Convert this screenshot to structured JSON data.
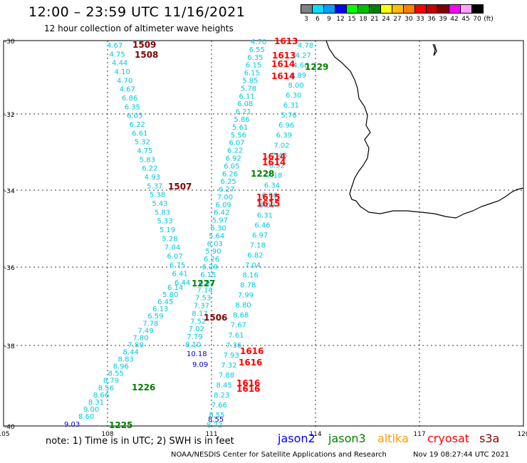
{
  "header": {
    "title": "12:00 – 23:59 UTC 11/16/2021",
    "subtitle": "12 hour collection of altimeter wave heights"
  },
  "legend": {
    "colors": [
      "#808080",
      "#00e0ff",
      "#00a0ff",
      "#0000ff",
      "#00ff00",
      "#00c000",
      "#008000",
      "#ffff00",
      "#ffc000",
      "#ff8000",
      "#ff0000",
      "#c00000",
      "#800000",
      "#ff00ff",
      "#ffa0ff",
      "#000000"
    ],
    "labels": [
      "3",
      "6",
      "9",
      "12",
      "15",
      "18",
      "21",
      "24",
      "27",
      "30",
      "33",
      "36",
      "39",
      "42",
      "45",
      "70",
      "(ft)"
    ]
  },
  "axes": {
    "lat_labels": [
      "-30",
      "-32",
      "-34",
      "-36",
      "-38",
      "-40"
    ],
    "lon_labels": [
      "105",
      "108",
      "111",
      "114",
      "117",
      "120"
    ]
  },
  "tracks": {
    "cyan_a": {
      "color": "#00c8e0",
      "values": [
        "4.67",
        "4.75",
        "4.44",
        "4.10",
        "4.70",
        "4.67",
        "6.86",
        "6.35",
        "6.05",
        "6.22",
        "6.61",
        "5.32",
        "4.75",
        "5.83",
        "6.22",
        "4.93",
        "5.37",
        "5.38",
        "5.43",
        "5.83",
        "5.33",
        "5.19",
        "5.28",
        "7.04",
        "6.07",
        "6.75",
        "6.41",
        "6.44"
      ]
    },
    "cyan_b": {
      "color": "#00c8e0",
      "values": [
        "6.14",
        "5.80",
        "6.45",
        "6.13",
        "6.59",
        "7.78",
        "7.49",
        "7.80",
        "7.89",
        "8.44",
        "8.83",
        "8.96",
        "8.55",
        "8.79",
        "8.56",
        "8.66",
        "8.31",
        "9.00",
        "8.60"
      ]
    },
    "cyan_c": {
      "color": "#00c8e0",
      "values": [
        "4.70",
        "6.55",
        "6.35",
        "6.15",
        "6.15",
        "5.85",
        "5.78",
        "6.11",
        "6.08",
        "6.21",
        "5.86",
        "5.61",
        "5.56",
        "6.07",
        "6.22",
        "6.92",
        "6.05",
        "6.26",
        "6.25",
        "6.27",
        "7.00",
        "6.09",
        "6.42",
        "5.97",
        "6.30",
        "5.64",
        "6.03",
        "5.90",
        "6.26",
        "6.29",
        "6.15",
        "6.92",
        "7.14",
        "7.53",
        "7.37",
        "8.17",
        "7.52",
        "7.02",
        "7.79",
        "8.10"
      ]
    },
    "cyan_d": {
      "color": "#00c8e0",
      "values": [
        "4.78",
        "4.27",
        "4.66",
        "8.89",
        "8.00",
        "6.30",
        "6.31",
        "5.76",
        "6.96",
        "6.39",
        "7.02",
        "7.48",
        "6.52",
        "7.18",
        "6.34",
        "6.86",
        "6.09",
        "6.31",
        "6.46",
        "6.97",
        "7.18",
        "6.82",
        "7.04",
        "8.16",
        "8.78",
        "7.99",
        "8.80",
        "8.68",
        "7.67",
        "7.61",
        "7.36",
        "7.93",
        "7.32",
        "7.88",
        "8.45",
        "8.23",
        "7.66",
        "8.55",
        "8.72"
      ]
    },
    "blue": {
      "color": "#0000cc",
      "values": [
        "9.03",
        "10.18",
        "9.09",
        "8.55"
      ]
    }
  },
  "time_labels": [
    {
      "text": "1509",
      "color": "#800000"
    },
    {
      "text": "1508",
      "color": "#800000"
    },
    {
      "text": "1507",
      "color": "#800000"
    },
    {
      "text": "1506",
      "color": "#800000"
    },
    {
      "text": "1613",
      "color": "#ff0000"
    },
    {
      "text": "1613",
      "color": "#ff0000"
    },
    {
      "text": "1614",
      "color": "#ff0000"
    },
    {
      "text": "1614",
      "color": "#ff0000"
    },
    {
      "text": "1614",
      "color": "#ff0000"
    },
    {
      "text": "1614",
      "color": "#ff0000"
    },
    {
      "text": "1615",
      "color": "#ff0000"
    },
    {
      "text": "1615",
      "color": "#ff0000"
    },
    {
      "text": "1616",
      "color": "#ff0000"
    },
    {
      "text": "1616",
      "color": "#ff0000"
    },
    {
      "text": "1616",
      "color": "#ff0000"
    },
    {
      "text": "1616",
      "color": "#ff0000"
    },
    {
      "text": "1229",
      "color": "#008000"
    },
    {
      "text": "1228",
      "color": "#008000"
    },
    {
      "text": "1227",
      "color": "#008000"
    },
    {
      "text": "1226",
      "color": "#008000"
    },
    {
      "text": "1225",
      "color": "#008000"
    }
  ],
  "footer": {
    "note": "note:  1) Time is in UTC; 2) SWH is in feet",
    "satellites": [
      {
        "name": "jason2",
        "color": "#0000ff"
      },
      {
        "name": "jason3",
        "color": "#008000"
      },
      {
        "name": "altika",
        "color": "#ff9900"
      },
      {
        "name": "cryosat",
        "color": "#ff0000"
      },
      {
        "name": "s3a",
        "color": "#800000"
      }
    ],
    "credit": "NOAA/NESDIS Center for Satellite Applications and Research",
    "timestamp": "Nov 19 08:27:44 UTC 2021"
  }
}
